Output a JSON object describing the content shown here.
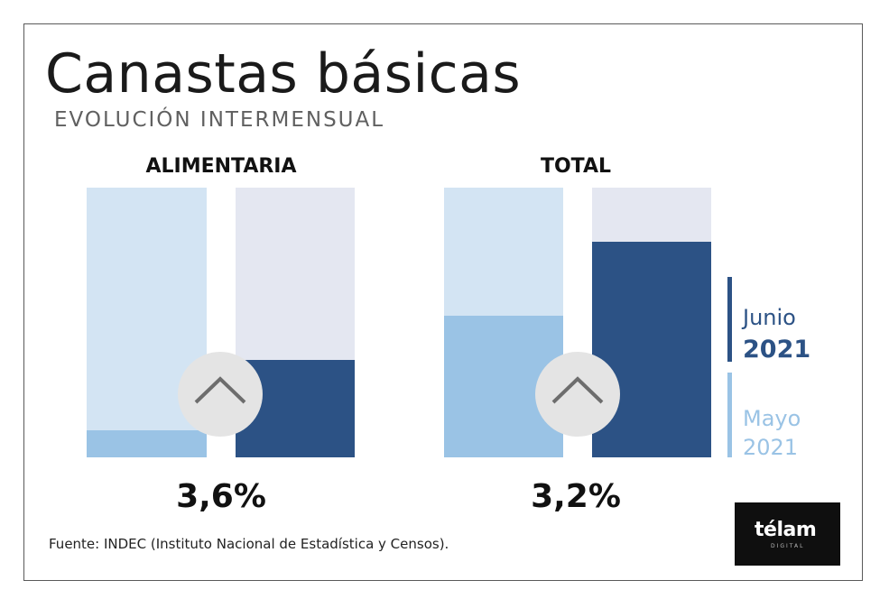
{
  "title": "Canastas básicas",
  "subtitle": "EVOLUCIÓN INTERMENSUAL",
  "colors": {
    "junio": "#2c5285",
    "mayo": "#9ac3e5",
    "mayo_bg": "#d3e4f3",
    "junio_bg": "#e4e7f1"
  },
  "legend": {
    "junio_month": "Junio",
    "junio_year": "2021",
    "mayo_month": "Mayo",
    "mayo_year": "2021"
  },
  "chart_data": [
    {
      "type": "bar",
      "title": "ALIMENTARIA",
      "categories": [
        "Mayo 2021",
        "Junio 2021"
      ],
      "values": [
        1.0,
        3.6
      ],
      "value_label": "3,6%",
      "ylim": [
        0,
        10
      ]
    },
    {
      "type": "bar",
      "title": "TOTAL",
      "categories": [
        "Mayo 2021",
        "Junio 2021"
      ],
      "values": [
        2.1,
        3.2
      ],
      "value_label": "3,2%",
      "ylim": [
        0,
        4
      ]
    }
  ],
  "icons": {
    "increase": "chevron-up-icon"
  },
  "source": "Fuente: INDEC (Instituto Nacional de Estadística y Censos).",
  "logo": {
    "word": "télam",
    "sub": "DIGITAL"
  }
}
